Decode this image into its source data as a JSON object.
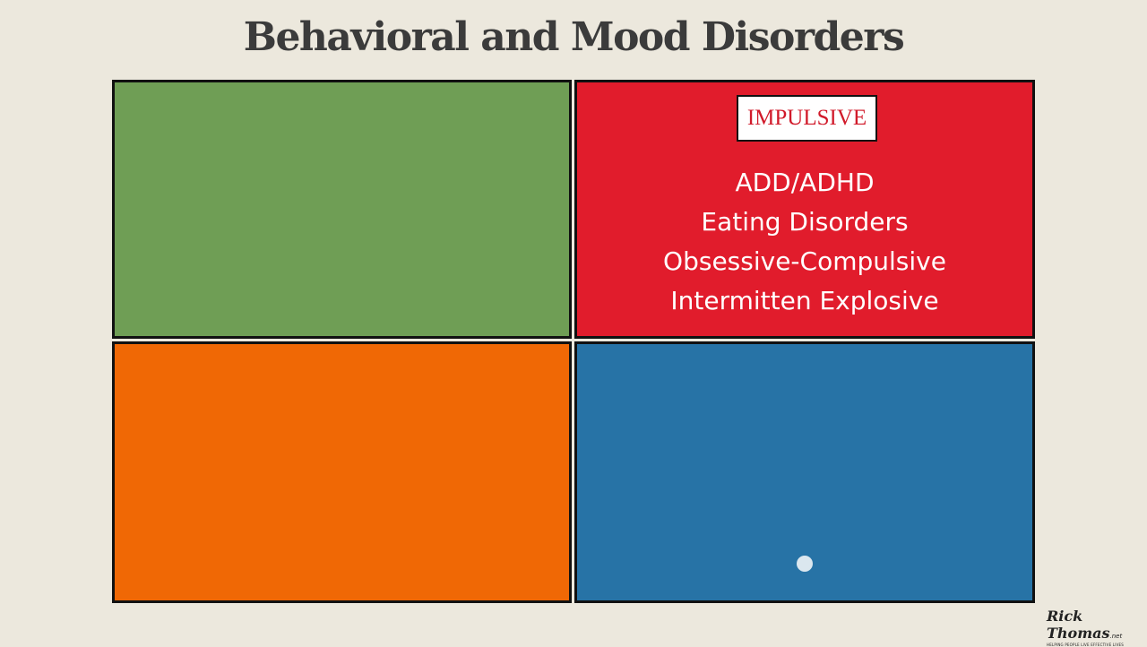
{
  "header": {
    "title": "Behavioral and Mood Disorders"
  },
  "panel": {
    "label": "IMPULSIVE",
    "items": [
      "ADD/ADHD",
      "Eating Disorders",
      "Obsessive-Compulsive",
      "Intermitten Explosive"
    ]
  },
  "logo": {
    "name": "Rick Thomas",
    "suffix": ".net",
    "tagline": "HELPING PEOPLE LIVE EFFECTIVE LIVES"
  }
}
